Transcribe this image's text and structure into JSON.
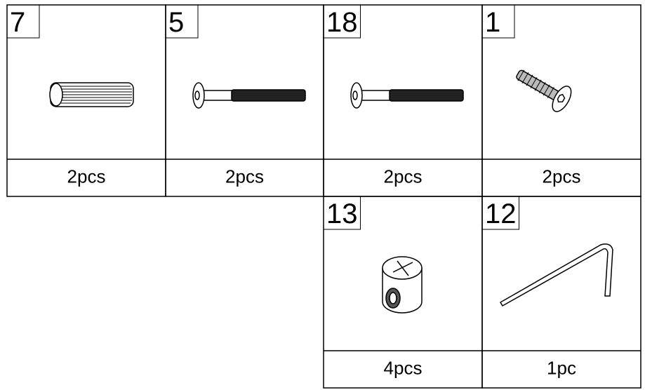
{
  "parts": [
    {
      "number": "7",
      "quantity": "2pcs"
    },
    {
      "number": "5",
      "quantity": "2pcs"
    },
    {
      "number": "18",
      "quantity": "2pcs"
    },
    {
      "number": "1",
      "quantity": "2pcs"
    },
    {
      "number": "13",
      "quantity": "4pcs"
    },
    {
      "number": "12",
      "quantity": "1pc"
    }
  ]
}
